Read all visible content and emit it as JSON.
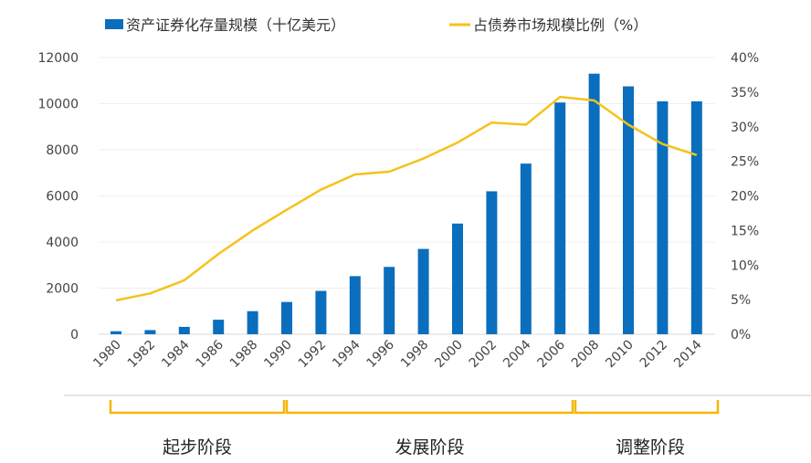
{
  "chart_data": {
    "type": "bar+line",
    "categories": [
      "1980",
      "1982",
      "1984",
      "1986",
      "1988",
      "1990",
      "1992",
      "1994",
      "1996",
      "1998",
      "2000",
      "2002",
      "2004",
      "2006",
      "2008",
      "2010",
      "2012",
      "2014"
    ],
    "series": [
      {
        "name": "资产证券化存量规模（十亿美元）",
        "type": "bar",
        "axis": "left",
        "color": "#0a6ebd",
        "values": [
          130,
          180,
          320,
          630,
          1000,
          1400,
          1880,
          2520,
          2920,
          3700,
          4800,
          6200,
          7400,
          10050,
          11300,
          10750,
          10100,
          10100
        ]
      },
      {
        "name": "占债券市场规模比例（%）",
        "type": "line",
        "axis": "right",
        "color": "#f5c21b",
        "values": [
          4.9,
          5.9,
          7.8,
          11.6,
          15.0,
          18.0,
          20.9,
          23.1,
          23.5,
          25.4,
          27.7,
          30.6,
          30.3,
          34.3,
          33.8,
          30.3,
          27.5,
          25.9
        ]
      }
    ],
    "y_left": {
      "ylim": [
        0,
        12000
      ],
      "ticks": [
        "0",
        "2000",
        "4000",
        "6000",
        "8000",
        "10000",
        "12000"
      ]
    },
    "y_right": {
      "ylim": [
        0,
        40
      ],
      "ticks": [
        "0%",
        "5%",
        "10%",
        "15%",
        "20%",
        "25%",
        "30%",
        "35%",
        "40%"
      ]
    },
    "grid": true,
    "legend_placement": "top",
    "phases": [
      {
        "label": "起步阶段",
        "from": "1980",
        "to": "1990"
      },
      {
        "label": "发展阶段",
        "from": "1990",
        "to": "2006"
      },
      {
        "label": "调整阶段",
        "from": "2006",
        "to": "2014"
      }
    ]
  }
}
